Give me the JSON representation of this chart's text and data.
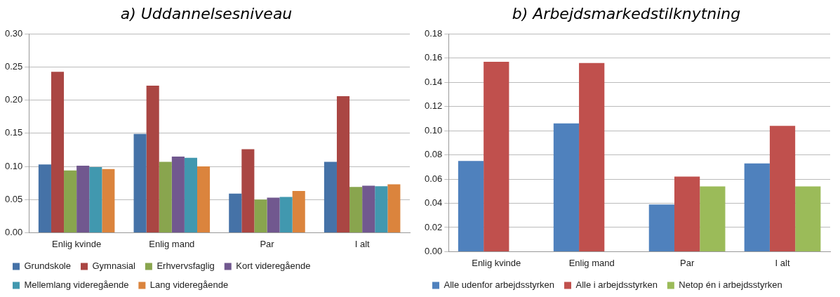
{
  "chart_data": [
    {
      "type": "bar",
      "title": "a) Uddannelsesniveau",
      "categories": [
        "Enlig kvinde",
        "Enlig mand",
        "Par",
        "I alt"
      ],
      "series": [
        {
          "name": "Grundskole",
          "color": "#4572a7",
          "values": [
            0.103,
            0.149,
            0.059,
            0.107
          ]
        },
        {
          "name": "Gymnasial",
          "color": "#aa4643",
          "values": [
            0.243,
            0.222,
            0.126,
            0.206
          ]
        },
        {
          "name": "Erhvervsfaglig",
          "color": "#89a54e",
          "values": [
            0.094,
            0.107,
            0.05,
            0.069
          ]
        },
        {
          "name": "Kort videregående",
          "color": "#71588f",
          "values": [
            0.101,
            0.115,
            0.053,
            0.071
          ]
        },
        {
          "name": "Mellemlang videregående",
          "color": "#4198af",
          "values": [
            0.099,
            0.113,
            0.054,
            0.07
          ]
        },
        {
          "name": "Lang videregående",
          "color": "#db843d",
          "values": [
            0.096,
            0.1,
            0.063,
            0.073
          ]
        }
      ],
      "ylim": [
        0,
        0.3
      ],
      "yticks": [
        {
          "value": 0,
          "label": "0.00"
        },
        {
          "value": 0.05,
          "label": "0.05"
        },
        {
          "value": 0.1,
          "label": "0.10"
        },
        {
          "value": 0.15,
          "label": "0.15"
        },
        {
          "value": 0.2,
          "label": "0.20"
        },
        {
          "value": 0.25,
          "label": "0.25"
        },
        {
          "value": 0.3,
          "label": "0.30"
        }
      ],
      "grid": "y",
      "legend": "bottom"
    },
    {
      "type": "bar",
      "title": "b) Arbejdsmarkedstilknytning",
      "categories": [
        "Enlig kvinde",
        "Enlig mand",
        "Par",
        "I alt"
      ],
      "series": [
        {
          "name": "Alle udenfor arbejdsstyrken",
          "color": "#4f81bd",
          "values": [
            0.075,
            0.106,
            0.039,
            0.073
          ]
        },
        {
          "name": "Alle i arbejdsstyrken",
          "color": "#c0504d",
          "values": [
            0.157,
            0.156,
            0.062,
            0.104
          ]
        },
        {
          "name": "Netop én i arbejdsstyrken",
          "color": "#9bbb59",
          "values": [
            null,
            null,
            0.054,
            0.054
          ]
        }
      ],
      "ylim": [
        0,
        0.18
      ],
      "yticks": [
        {
          "value": 0,
          "label": "0.00"
        },
        {
          "value": 0.02,
          "label": "0.02"
        },
        {
          "value": 0.04,
          "label": "0.04"
        },
        {
          "value": 0.06,
          "label": "0.06"
        },
        {
          "value": 0.08,
          "label": "0.08"
        },
        {
          "value": 0.1,
          "label": "0.10"
        },
        {
          "value": 0.12,
          "label": "0.12"
        },
        {
          "value": 0.14,
          "label": "0.14"
        },
        {
          "value": 0.16,
          "label": "0.16"
        },
        {
          "value": 0.18,
          "label": "0.18"
        }
      ],
      "grid": "y",
      "legend": "bottom"
    }
  ]
}
